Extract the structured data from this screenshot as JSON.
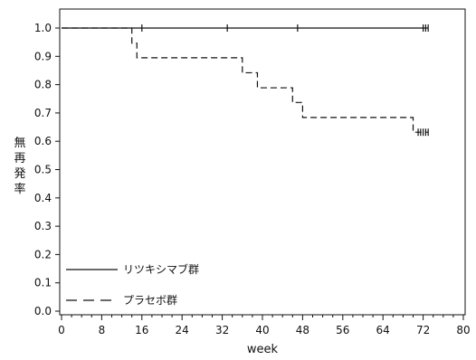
{
  "chart_data": {
    "type": "line",
    "title": "",
    "xlabel": "week",
    "ylabel": "無再発率",
    "xlim": [
      0,
      80
    ],
    "ylim": [
      0,
      1.05
    ],
    "xticks": [
      "0",
      "8",
      "16",
      "24",
      "32",
      "40",
      "48",
      "56",
      "64",
      "72",
      "80"
    ],
    "yticks": [
      "0.0",
      "0.1",
      "0.2",
      "0.3",
      "0.4",
      "0.5",
      "0.6",
      "0.7",
      "0.8",
      "0.9",
      "1.0"
    ],
    "grid": false,
    "legend_position": "bottom-left",
    "series": [
      {
        "name": "リツキシマブ群",
        "line_style": "solid",
        "color": "#111111",
        "steps": [
          [
            0,
            1.0
          ],
          [
            73,
            1.0
          ]
        ],
        "censor_times": [
          16,
          33,
          47,
          72,
          72.5,
          73
        ]
      },
      {
        "name": "プラセボ群",
        "line_style": "dashed",
        "color": "#111111",
        "steps": [
          [
            0,
            1.0
          ],
          [
            14,
            0.947
          ],
          [
            15,
            0.895
          ],
          [
            36,
            0.842
          ],
          [
            39,
            0.789
          ],
          [
            46,
            0.737
          ],
          [
            48,
            0.684
          ],
          [
            70,
            0.632
          ],
          [
            73,
            0.632
          ]
        ],
        "censor_times": [
          71,
          71.5,
          72,
          72.5,
          73
        ]
      }
    ]
  }
}
